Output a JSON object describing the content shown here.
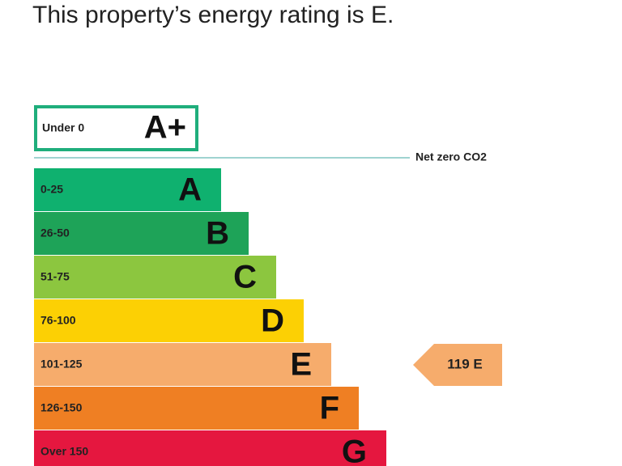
{
  "header": {
    "title": "This property’s energy rating is E."
  },
  "top_band": {
    "range": "Under 0",
    "letter": "A+"
  },
  "net_zero": {
    "label": "Net zero CO2"
  },
  "bands": [
    {
      "range": "0-25",
      "letter": "A",
      "color": "#0fb16f"
    },
    {
      "range": "26-50",
      "letter": "B",
      "color": "#1ea358"
    },
    {
      "range": "51-75",
      "letter": "C",
      "color": "#8cc63f"
    },
    {
      "range": "76-100",
      "letter": "D",
      "color": "#fcd004"
    },
    {
      "range": "101-125",
      "letter": "E",
      "color": "#f6ac6c"
    },
    {
      "range": "126-150",
      "letter": "F",
      "color": "#ef7f23"
    },
    {
      "range": "Over 150",
      "letter": "G",
      "color": "#e5173f"
    }
  ],
  "current_rating": {
    "label": "119 E",
    "band": "E"
  }
}
